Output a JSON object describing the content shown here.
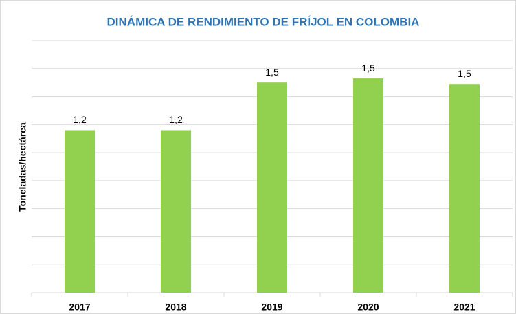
{
  "chart_data": {
    "type": "bar",
    "title": "DINÁMICA DE RENDIMIENTO DE FRÍJOL EN COLOMBIA",
    "y_label": "Toneladas/hectárea",
    "categories": [
      "2017",
      "2018",
      "2019",
      "2020",
      "2021"
    ],
    "values": [
      1.16,
      1.16,
      1.5,
      1.53,
      1.49
    ],
    "value_labels": [
      "1,2",
      "1,2",
      "1,5",
      "1,5",
      "1,5"
    ],
    "color": "#92d050",
    "ylim": [
      0,
      1.8
    ],
    "yticks": [
      0,
      0.2,
      0.4,
      0.6,
      0.8,
      1,
      1.2,
      1.4,
      1.6,
      1.8
    ],
    "grid": true
  }
}
